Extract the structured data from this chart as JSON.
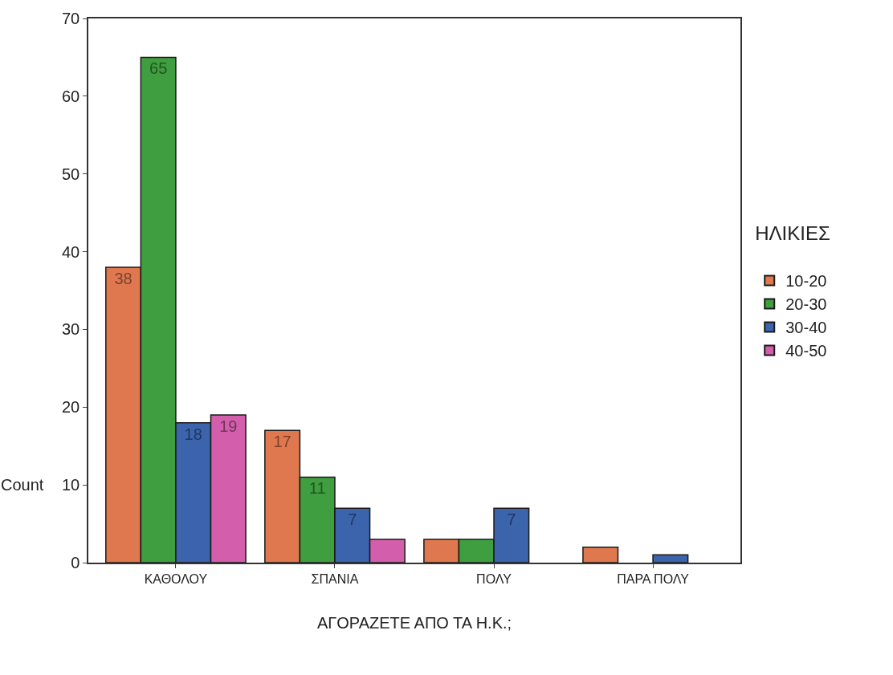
{
  "chart_data": {
    "type": "bar",
    "xlabel": "ΑΓΟΡΑΖΕΤΕ ΑΠΟ ΤΑ Η.Κ.;",
    "ylabel": "Count",
    "legend_title": "ΗΛΙΚΙΕΣ",
    "categories": [
      "ΚΑΘΟΛΟΥ",
      "ΣΠΑΝΙΑ",
      "ΠΟΛΥ",
      "ΠΑΡΑ ΠΟΛΥ"
    ],
    "series": [
      {
        "name": "10-20",
        "color": "#e0784f",
        "values": [
          38,
          17,
          3,
          2
        ],
        "value_labels": [
          "38",
          "17",
          null,
          null
        ]
      },
      {
        "name": "20-30",
        "color": "#3f9e3f",
        "values": [
          65,
          11,
          3,
          null
        ],
        "value_labels": [
          "65",
          "11",
          null,
          null
        ]
      },
      {
        "name": "30-40",
        "color": "#3b64ad",
        "values": [
          18,
          7,
          7,
          1
        ],
        "value_labels": [
          "18",
          "7",
          "7",
          null
        ]
      },
      {
        "name": "40-50",
        "color": "#d35eab",
        "values": [
          19,
          3,
          null,
          null
        ],
        "value_labels": [
          "19",
          null,
          null,
          null
        ]
      }
    ],
    "ylim": [
      0,
      70
    ],
    "yticks": [
      0,
      10,
      20,
      30,
      40,
      50,
      60,
      70
    ],
    "legend": "right"
  }
}
